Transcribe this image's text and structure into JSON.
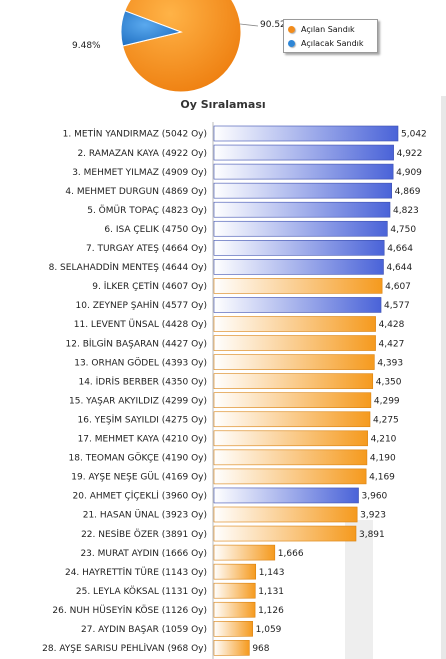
{
  "pie": {
    "slices": [
      {
        "name": "Açılan Sandık",
        "value": 90.52,
        "label": "90.52",
        "color": "#f28c1c"
      },
      {
        "name": "Açılacak Sandık",
        "value": 9.48,
        "label": "9.48%",
        "color": "#2e86d6"
      }
    ]
  },
  "chart_data": {
    "type": "bar",
    "orientation": "horizontal",
    "title": "Oy Sıralaması",
    "xlim": [
      0,
      5042
    ],
    "categories": [
      "1. METİN YANDIRMAZ (5042 Oy)",
      "2. RAMAZAN KAYA (4922 Oy)",
      "3. MEHMET YILMAZ (4909 Oy)",
      "4. MEHMET DURGUN (4869 Oy)",
      "5. ÖMÜR TOPAÇ (4823 Oy)",
      "6. ISA ÇELIK (4750 Oy)",
      "7. TURGAY ATEŞ (4664 Oy)",
      "8. SELAHADDİN MENTEŞ (4644 Oy)",
      "9. İLKER ÇETİN (4607 Oy)",
      "10. ZEYNEP ŞAHİN (4577 Oy)",
      "11. LEVENT ÜNSAL (4428 Oy)",
      "12. BİLGİN BAŞARAN (4427 Oy)",
      "13. ORHAN GÖDEL (4393 Oy)",
      "14. İDRİS BERBER (4350 Oy)",
      "15. YAŞAR AKYILDIZ (4299 Oy)",
      "16. YEŞİM SAYILDI (4275 Oy)",
      "17. MEHMET KAYA (4210 Oy)",
      "18. TEOMAN GÖKÇE (4190 Oy)",
      "19. AYŞE NEŞE GÜL (4169 Oy)",
      "20. AHMET ÇİÇEKLİ (3960 Oy)",
      "21. HASAN ÜNAL (3923 Oy)",
      "22. NESİBE ÖZER (3891 Oy)",
      "23. MURAT AYDIN (1666 Oy)",
      "24. HAYRETTİN TÜRE (1143 Oy)",
      "25. LEYLA KÖKSAL (1131 Oy)",
      "26. NUH HÜSEYİN KÖSE (1126 Oy)",
      "27. AYDIN BAŞAR (1059 Oy)",
      "28. AYŞE SARISU PEHLİVAN (968 Oy)"
    ],
    "values": [
      5042,
      4922,
      4909,
      4869,
      4823,
      4750,
      4664,
      4644,
      4607,
      4577,
      4428,
      4427,
      4393,
      4350,
      4299,
      4275,
      4210,
      4190,
      4169,
      3960,
      3923,
      3891,
      1666,
      1143,
      1131,
      1126,
      1059,
      968
    ],
    "value_labels": [
      "5,042",
      "4,922",
      "4,909",
      "4,869",
      "4,823",
      "4,750",
      "4,664",
      "4,644",
      "4,607",
      "4,577",
      "4,428",
      "4,427",
      "4,393",
      "4,350",
      "4,299",
      "4,275",
      "4,210",
      "4,190",
      "4,169",
      "3,960",
      "3,923",
      "3,891",
      "1,666",
      "1,143",
      "1,131",
      "1,126",
      "1,059",
      "968"
    ],
    "bar_colors": [
      "blue",
      "blue",
      "blue",
      "blue",
      "blue",
      "blue",
      "blue",
      "blue",
      "orange",
      "blue",
      "orange",
      "orange",
      "orange",
      "orange",
      "orange",
      "orange",
      "orange",
      "orange",
      "orange",
      "blue",
      "orange",
      "orange",
      "orange",
      "orange",
      "orange",
      "orange",
      "orange",
      "orange"
    ],
    "colors": {
      "blue": "#4a63d8",
      "orange": "#f59a1e"
    }
  }
}
